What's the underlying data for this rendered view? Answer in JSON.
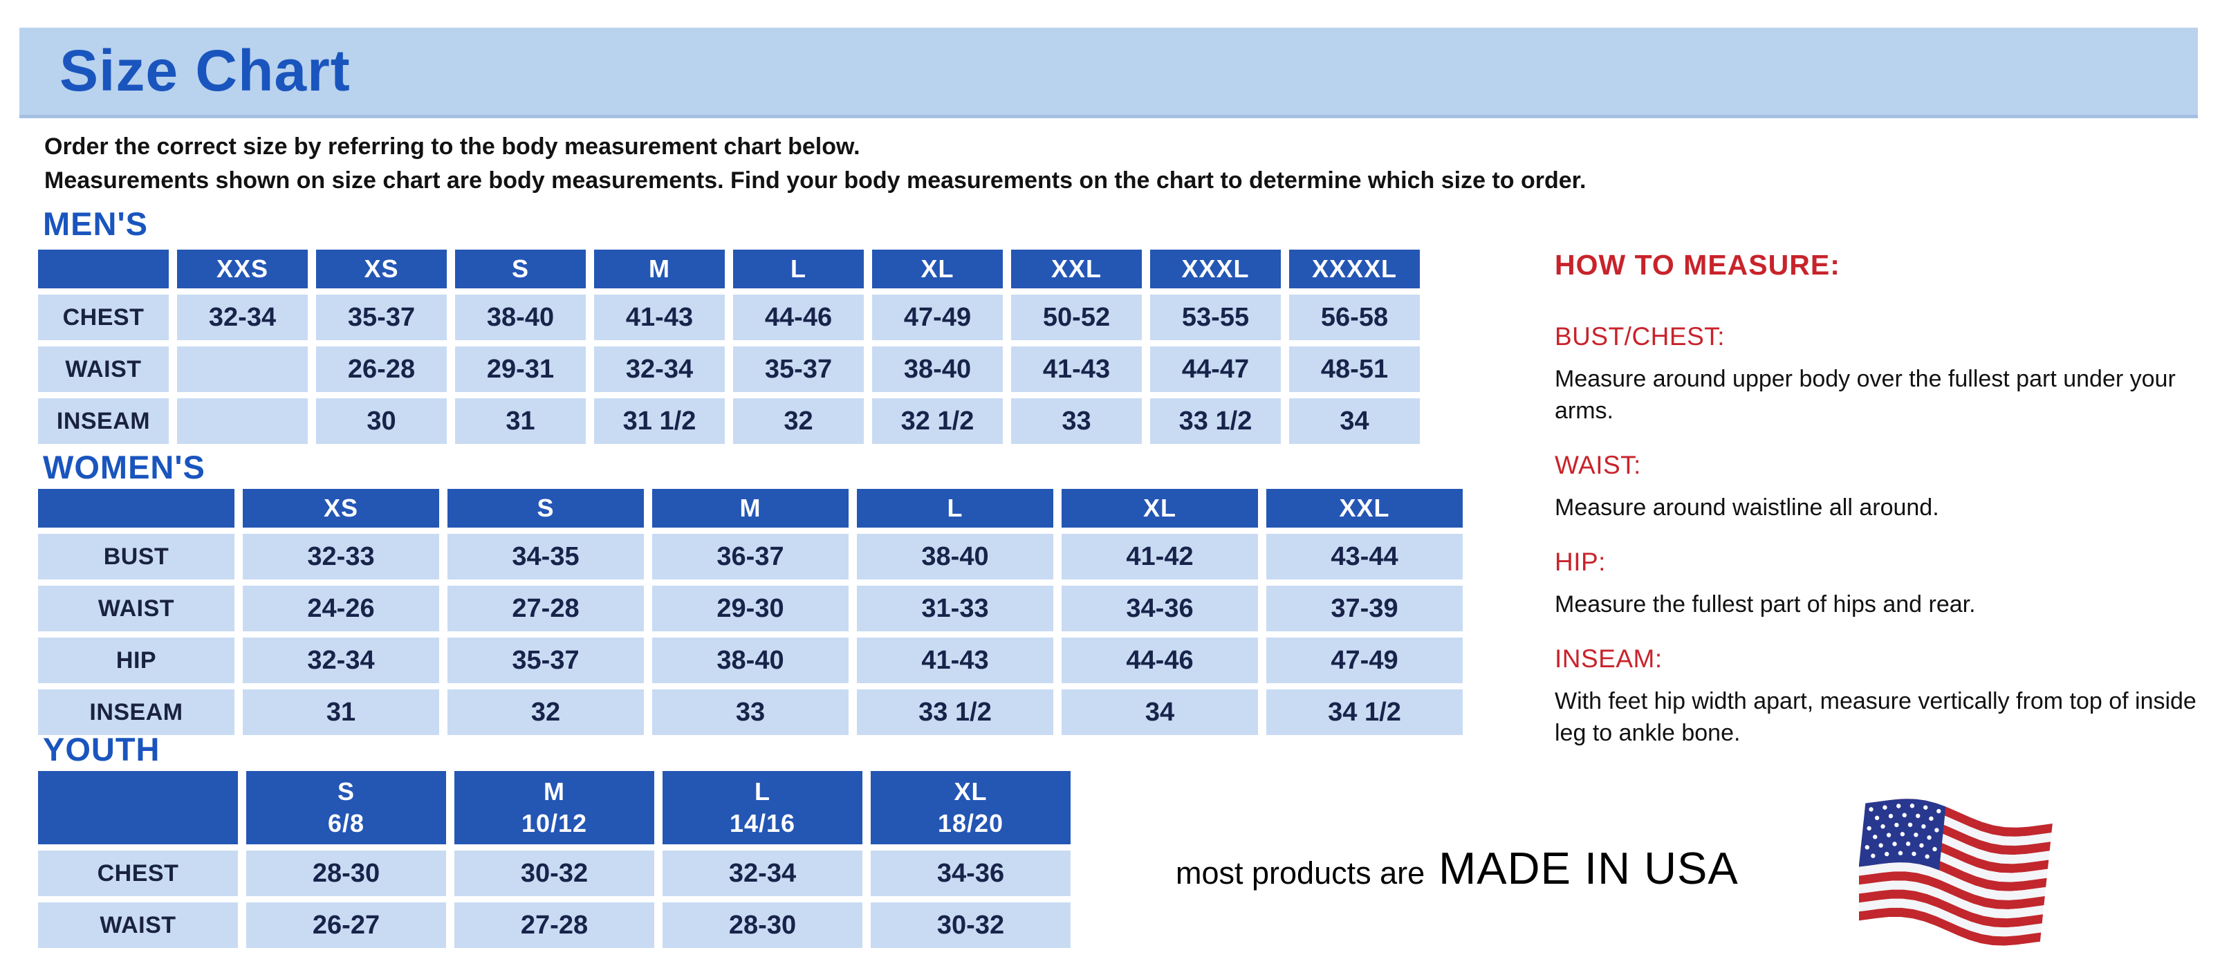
{
  "page": {
    "title": "Size Chart",
    "intro_line1": "Order the correct size by referring to the body measurement chart below.",
    "intro_line2": "Measurements shown on size chart are body measurements.  Find your body measurements on the chart to determine which size to order."
  },
  "colors": {
    "banner_bg": "#b9d2ee",
    "heading_blue": "#1a55be",
    "table_header_blue": "#2456b4",
    "table_cell_blue": "#c9dbf3",
    "cell_text_navy": "#18234a",
    "accent_red": "#c8232b",
    "flag_red": "#c1272d",
    "flag_blue": "#28388f"
  },
  "tables": {
    "mens": {
      "heading": "MEN'S",
      "sizes": [
        [
          "XXS"
        ],
        [
          "XS"
        ],
        [
          "S"
        ],
        [
          "M"
        ],
        [
          "L"
        ],
        [
          "XL"
        ],
        [
          "XXL"
        ],
        [
          "XXXL"
        ],
        [
          "XXXXL"
        ]
      ],
      "rows": [
        {
          "label": "CHEST",
          "values": [
            "32-34",
            "35-37",
            "38-40",
            "41-43",
            "44-46",
            "47-49",
            "50-52",
            "53-55",
            "56-58"
          ]
        },
        {
          "label": "WAIST",
          "values": [
            "",
            "26-28",
            "29-31",
            "32-34",
            "35-37",
            "38-40",
            "41-43",
            "44-47",
            "48-51"
          ]
        },
        {
          "label": "INSEAM",
          "values": [
            "",
            "30",
            "31",
            "31 1/2",
            "32",
            "32 1/2",
            "33",
            "33 1/2",
            "34"
          ]
        }
      ]
    },
    "womens": {
      "heading": "WOMEN'S",
      "sizes": [
        [
          "XS"
        ],
        [
          "S"
        ],
        [
          "M"
        ],
        [
          "L"
        ],
        [
          "XL"
        ],
        [
          "XXL"
        ]
      ],
      "rows": [
        {
          "label": "BUST",
          "values": [
            "32-33",
            "34-35",
            "36-37",
            "38-40",
            "41-42",
            "43-44"
          ]
        },
        {
          "label": "WAIST",
          "values": [
            "24-26",
            "27-28",
            "29-30",
            "31-33",
            "34-36",
            "37-39"
          ]
        },
        {
          "label": "HIP",
          "values": [
            "32-34",
            "35-37",
            "38-40",
            "41-43",
            "44-46",
            "47-49"
          ]
        },
        {
          "label": "INSEAM",
          "values": [
            "31",
            "32",
            "33",
            "33 1/2",
            "34",
            "34 1/2"
          ]
        }
      ]
    },
    "youth": {
      "heading": "YOUTH",
      "sizes": [
        [
          "S",
          "6/8"
        ],
        [
          "M",
          "10/12"
        ],
        [
          "L",
          "14/16"
        ],
        [
          "XL",
          "18/20"
        ]
      ],
      "rows": [
        {
          "label": "CHEST",
          "values": [
            "28-30",
            "30-32",
            "32-34",
            "34-36"
          ]
        },
        {
          "label": "WAIST",
          "values": [
            "26-27",
            "27-28",
            "28-30",
            "30-32"
          ]
        }
      ]
    }
  },
  "measure": {
    "heading": "HOW TO MEASURE:",
    "sections": [
      {
        "label": "BUST/CHEST:",
        "text": "Measure around upper body over the fullest part under your arms."
      },
      {
        "label": "WAIST:",
        "text": "Measure around waistline all around."
      },
      {
        "label": "HIP:",
        "text": "Measure the fullest part of hips and rear."
      },
      {
        "label": "INSEAM:",
        "text": "With feet hip width apart, measure vertically from top of inside leg to ankle bone."
      }
    ]
  },
  "footer": {
    "prefix": "most products are",
    "main": "MADE IN USA",
    "flag_icon": "usa-flag-icon"
  }
}
